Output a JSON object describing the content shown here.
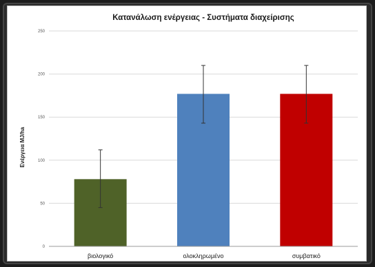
{
  "chart_data": {
    "type": "bar",
    "title": "Κατανάλωση ενέργειας - Συστήματα διαχείρισης",
    "xlabel": "",
    "ylabel": "Ενέργεια MJ/ha",
    "ylim": [
      0,
      250
    ],
    "yticks": [
      0,
      50,
      100,
      150,
      200,
      250
    ],
    "grid": true,
    "legend": "none",
    "categories": [
      "βιολογικό",
      "ολοκληρωμένο",
      "συμβατικό"
    ],
    "values": [
      78,
      177,
      177
    ],
    "error_low": [
      45,
      143,
      143
    ],
    "error_high": [
      112,
      210,
      210
    ],
    "colors": [
      "#4f6228",
      "#4f81bd",
      "#c00000"
    ]
  }
}
